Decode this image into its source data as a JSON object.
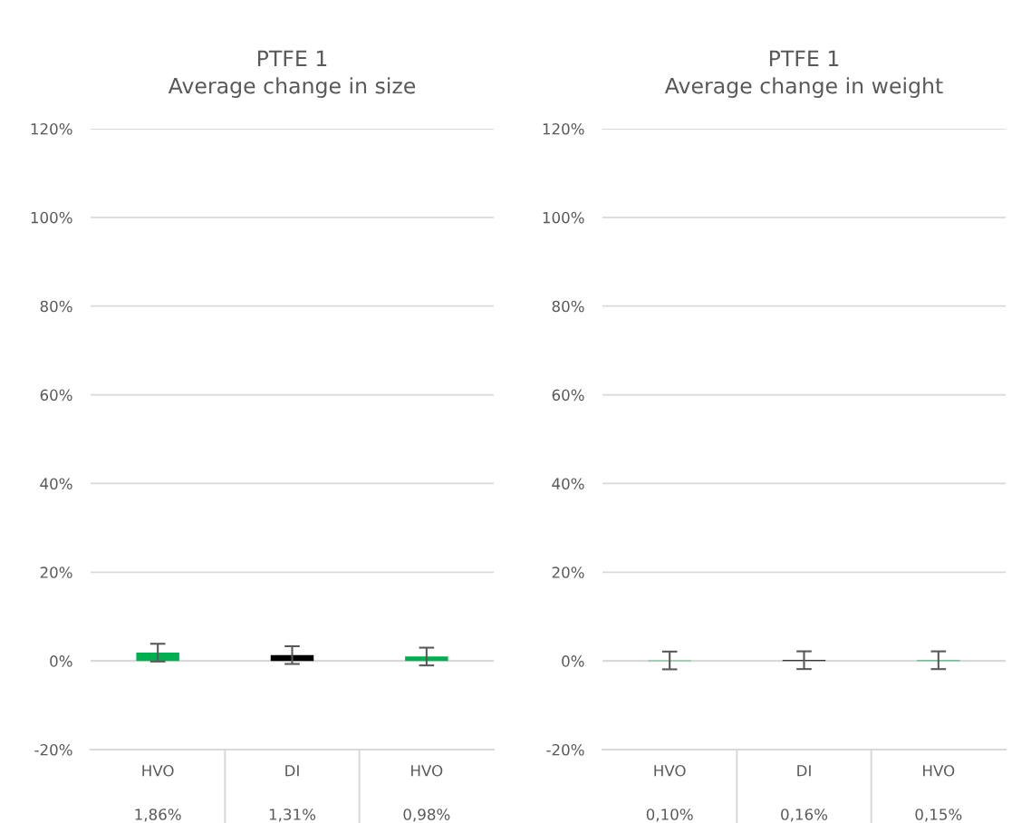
{
  "chart_data": [
    {
      "type": "bar",
      "title": "PTFE 1\nAverage change in size",
      "categories": [
        "HVO",
        "DI",
        "HVO"
      ],
      "values": [
        1.86,
        1.31,
        0.98
      ],
      "colors": [
        "#00b050",
        "#000000",
        "#00b050"
      ],
      "errors": [
        2,
        2,
        2
      ],
      "value_labels": [
        "1,86%",
        "1,31%",
        "0,98%"
      ],
      "ylim": [
        -20,
        120
      ],
      "yticks": [
        {
          "value": -20,
          "label": "-20%"
        },
        {
          "value": 0,
          "label": "0%"
        },
        {
          "value": 20,
          "label": "20%"
        },
        {
          "value": 40,
          "label": "40%"
        },
        {
          "value": 60,
          "label": "60%"
        },
        {
          "value": 80,
          "label": "80%"
        },
        {
          "value": 100,
          "label": "100%"
        },
        {
          "value": 120,
          "label": "120%"
        }
      ],
      "grid": "y",
      "legend": false
    },
    {
      "type": "bar",
      "title": "PTFE 1\nAverage change in weight",
      "categories": [
        "HVO",
        "DI",
        "HVO"
      ],
      "values": [
        0.1,
        0.16,
        0.15
      ],
      "colors": [
        "#00b050",
        "#000000",
        "#00b050"
      ],
      "errors": [
        2,
        2,
        2
      ],
      "value_labels": [
        "0,10%",
        "0,16%",
        "0,15%"
      ],
      "ylim": [
        -20,
        120
      ],
      "yticks": [
        {
          "value": -20,
          "label": "-20%"
        },
        {
          "value": 0,
          "label": "0%"
        },
        {
          "value": 20,
          "label": "20%"
        },
        {
          "value": 40,
          "label": "40%"
        },
        {
          "value": 60,
          "label": "60%"
        },
        {
          "value": 80,
          "label": "80%"
        },
        {
          "value": 100,
          "label": "100%"
        },
        {
          "value": 120,
          "label": "120%"
        }
      ],
      "grid": "y",
      "legend": false
    }
  ]
}
